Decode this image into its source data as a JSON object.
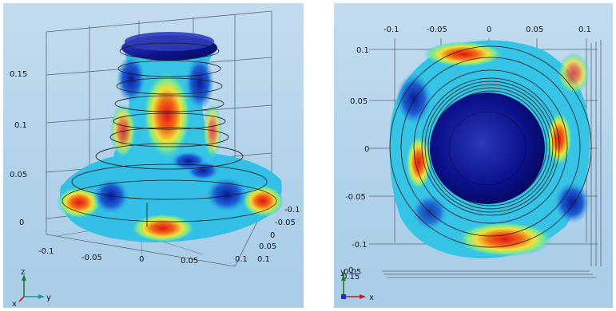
{
  "left_view": {
    "z_ticks": [
      "0.15",
      "0.1",
      "0.05",
      "0"
    ],
    "x_ticks": [
      "-0.1",
      "-0.05",
      "0",
      "0.05",
      "0.1"
    ],
    "y_ticks": [
      "-0.1",
      "-0.05",
      "0",
      "0.05",
      "0.1"
    ],
    "triad": {
      "z": "z",
      "y": "y",
      "x": "x"
    }
  },
  "right_view": {
    "x_ticks": [
      "-0.1",
      "-0.05",
      "0",
      "0.05",
      "0.1"
    ],
    "y_ticks": [
      "0.1",
      "0.05",
      "0",
      "-0.05",
      "-0.1"
    ],
    "z_ticks": [
      "0",
      "0.05",
      "0.15"
    ],
    "triad": {
      "y": "y",
      "x": "x"
    }
  },
  "colors": {
    "background": "#b0d1ea",
    "colormap": [
      "#0a0f8c",
      "#1e63d6",
      "#31c6e8",
      "#8ff07a",
      "#f2e83a",
      "#f07a1c",
      "#d8161a"
    ]
  }
}
